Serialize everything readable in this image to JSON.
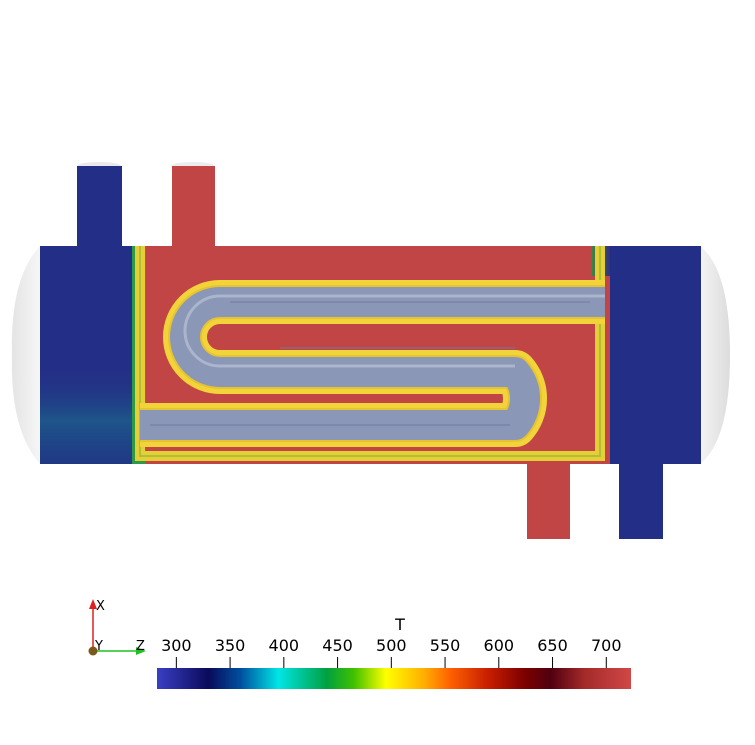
{
  "colorbar": {
    "title": "T",
    "ticks": [
      "300",
      "350",
      "400",
      "450",
      "500",
      "550",
      "600",
      "650",
      "700"
    ],
    "tick_values": [
      300,
      350,
      400,
      450,
      500,
      550,
      600,
      650,
      700
    ],
    "range": [
      282,
      723
    ],
    "colormap_stops": [
      {
        "value": 282,
        "color": "#3a3fc4"
      },
      {
        "value": 330,
        "color": "#0a0a5a"
      },
      {
        "value": 360,
        "color": "#0050a0"
      },
      {
        "value": 395,
        "color": "#00e6e6"
      },
      {
        "value": 440,
        "color": "#00a040"
      },
      {
        "value": 465,
        "color": "#40c000"
      },
      {
        "value": 495,
        "color": "#ffff00"
      },
      {
        "value": 530,
        "color": "#ffb000"
      },
      {
        "value": 555,
        "color": "#ff6000"
      },
      {
        "value": 590,
        "color": "#c81e00"
      },
      {
        "value": 625,
        "color": "#7a0000"
      },
      {
        "value": 648,
        "color": "#500010"
      },
      {
        "value": 680,
        "color": "#a52a2a"
      },
      {
        "value": 723,
        "color": "#d04848"
      }
    ]
  },
  "axes_triad": {
    "x_label": "X",
    "y_label": "Y",
    "z_label": "Z",
    "x_color": "#e02020",
    "z_color": "#20c020",
    "origin_color": "#7a5a1a"
  },
  "colors": {
    "cold": "#232f86",
    "hot": "#c24545",
    "coil_outer": "#f2d43a",
    "coil_inner": "#e6ba2c",
    "tube_glass": "#8a97b6",
    "end_cap": "#ececec"
  }
}
